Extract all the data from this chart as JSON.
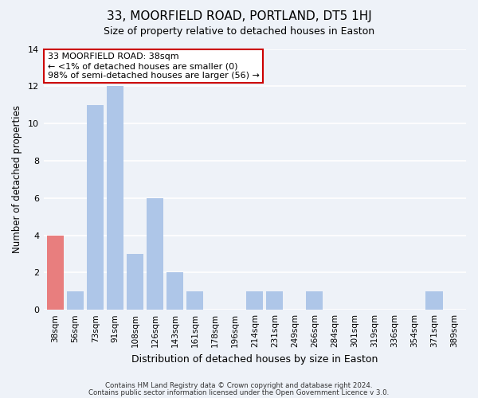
{
  "title": "33, MOORFIELD ROAD, PORTLAND, DT5 1HJ",
  "subtitle": "Size of property relative to detached houses in Easton",
  "xlabel": "Distribution of detached houses by size in Easton",
  "ylabel": "Number of detached properties",
  "bar_labels": [
    "38sqm",
    "56sqm",
    "73sqm",
    "91sqm",
    "108sqm",
    "126sqm",
    "143sqm",
    "161sqm",
    "178sqm",
    "196sqm",
    "214sqm",
    "231sqm",
    "249sqm",
    "266sqm",
    "284sqm",
    "301sqm",
    "319sqm",
    "336sqm",
    "354sqm",
    "371sqm",
    "389sqm"
  ],
  "bar_values": [
    4,
    1,
    11,
    12,
    3,
    6,
    2,
    1,
    0,
    0,
    1,
    1,
    0,
    1,
    0,
    0,
    0,
    0,
    0,
    1,
    0
  ],
  "highlight_index": 0,
  "bar_color_normal": "#aec6e8",
  "bar_color_highlight": "#e87e7e",
  "ylim": [
    0,
    14
  ],
  "yticks": [
    0,
    2,
    4,
    6,
    8,
    10,
    12,
    14
  ],
  "annotation_title": "33 MOORFIELD ROAD: 38sqm",
  "annotation_line1": "← <1% of detached houses are smaller (0)",
  "annotation_line2": "98% of semi-detached houses are larger (56) →",
  "annotation_box_color": "#ffffff",
  "annotation_box_edgecolor": "#cc0000",
  "footer_line1": "Contains HM Land Registry data © Crown copyright and database right 2024.",
  "footer_line2": "Contains public sector information licensed under the Open Government Licence v 3.0.",
  "background_color": "#eef2f8",
  "grid_color": "#ffffff"
}
